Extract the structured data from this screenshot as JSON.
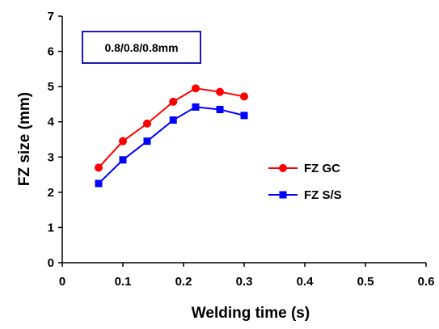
{
  "chart_data": {
    "type": "line",
    "xlabel": "Welding time (s)",
    "ylabel": "FZ size (mm)",
    "xlim": [
      0,
      0.6
    ],
    "ylim": [
      0,
      7
    ],
    "xticks": [
      "0",
      "0.1",
      "0.2",
      "0.3",
      "0.4",
      "0.5",
      "0.6"
    ],
    "yticks": [
      "0",
      "1",
      "2",
      "3",
      "4",
      "5",
      "6",
      "7"
    ],
    "grid": false,
    "legend_position": "right-middle",
    "annotation": "0.8/0.8/0.8mm",
    "x": [
      0.06,
      0.1,
      0.14,
      0.183,
      0.22,
      0.26,
      0.3
    ],
    "series": [
      {
        "name": "FZ GC",
        "color": "#ff0000",
        "marker": "circle",
        "values": [
          2.7,
          3.45,
          3.95,
          4.57,
          4.95,
          4.85,
          4.72
        ]
      },
      {
        "name": "FZ S/S",
        "color": "#0000ff",
        "marker": "square",
        "values": [
          2.25,
          2.92,
          3.45,
          4.05,
          4.42,
          4.35,
          4.18
        ]
      }
    ]
  }
}
